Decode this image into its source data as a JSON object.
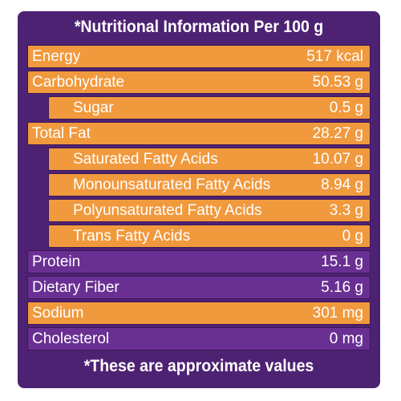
{
  "title": "*Nutritional Information Per 100 g",
  "rows": [
    {
      "label": "Energy",
      "value": "517 kcal"
    },
    {
      "label": "Carbohydrate",
      "value": "50.53 g"
    },
    {
      "label": "Sugar",
      "value": "0.5 g"
    },
    {
      "label": "Total Fat",
      "value": "28.27 g"
    },
    {
      "label": "Saturated Fatty Acids",
      "value": "10.07 g"
    },
    {
      "label": "Monounsaturated Fatty Acids",
      "value": "8.94 g"
    },
    {
      "label": "Polyunsaturated Fatty Acids",
      "value": "3.3 g"
    },
    {
      "label": "Trans Fatty Acids",
      "value": "0 g"
    },
    {
      "label": "Protein",
      "value": "15.1 g"
    },
    {
      "label": "Dietary Fiber",
      "value": "5.16 g"
    },
    {
      "label": "Sodium",
      "value": "301 mg"
    },
    {
      "label": "Cholesterol",
      "value": "0 mg"
    }
  ],
  "footnote": "*These are approximate values",
  "colors": {
    "panel": "#4e2273",
    "orange_row": "#f1993d",
    "purple_row": "#6a2f93",
    "text": "#ffffff"
  }
}
